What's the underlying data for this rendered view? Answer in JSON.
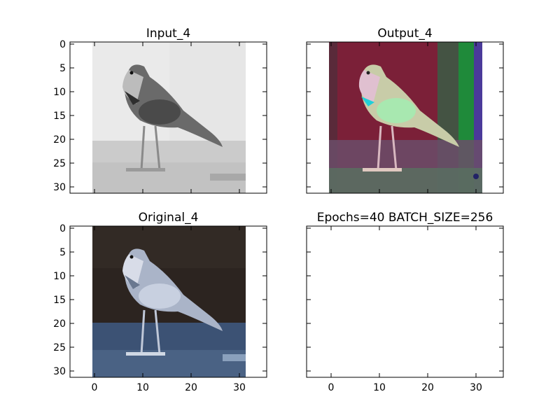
{
  "figure": {
    "panels": [
      {
        "id": "input",
        "title": "Input_4",
        "image": "grayscale-bird",
        "xlim": [
          -5,
          36
        ],
        "ylim": [
          31.5,
          -0.5
        ]
      },
      {
        "id": "output",
        "title": "Output_4",
        "image": "colorized-bird-output",
        "xlim": [
          -5,
          36
        ],
        "ylim": [
          31.5,
          -0.5
        ]
      },
      {
        "id": "original",
        "title": "Original_4",
        "image": "original-color-bird",
        "xlim": [
          -5,
          36
        ],
        "ylim": [
          31.5,
          -0.5
        ]
      },
      {
        "id": "empty",
        "title": "Epochs=40 BATCH_SIZE=256",
        "image": "",
        "xlim": [
          -5,
          36
        ],
        "ylim": [
          31.5,
          -0.5
        ]
      }
    ],
    "yticks": [
      "0",
      "5",
      "10",
      "15",
      "20",
      "25",
      "30"
    ],
    "xticks": [
      "0",
      "10",
      "20",
      "30"
    ],
    "colors": {
      "axis": "#000000",
      "background": "#ffffff",
      "input_sky": "#e4e4e4",
      "input_ground": "#c8c8c8",
      "input_bird": "#555555",
      "output_bg": "#7a1f3a",
      "output_ground": "#6b4d6a",
      "output_bird": "#c8d4c0",
      "output_edge_green": "#2aa54a",
      "original_bg": "#2e2622",
      "original_ground": "#3e5476",
      "original_bird": "#c4ccdc"
    }
  }
}
